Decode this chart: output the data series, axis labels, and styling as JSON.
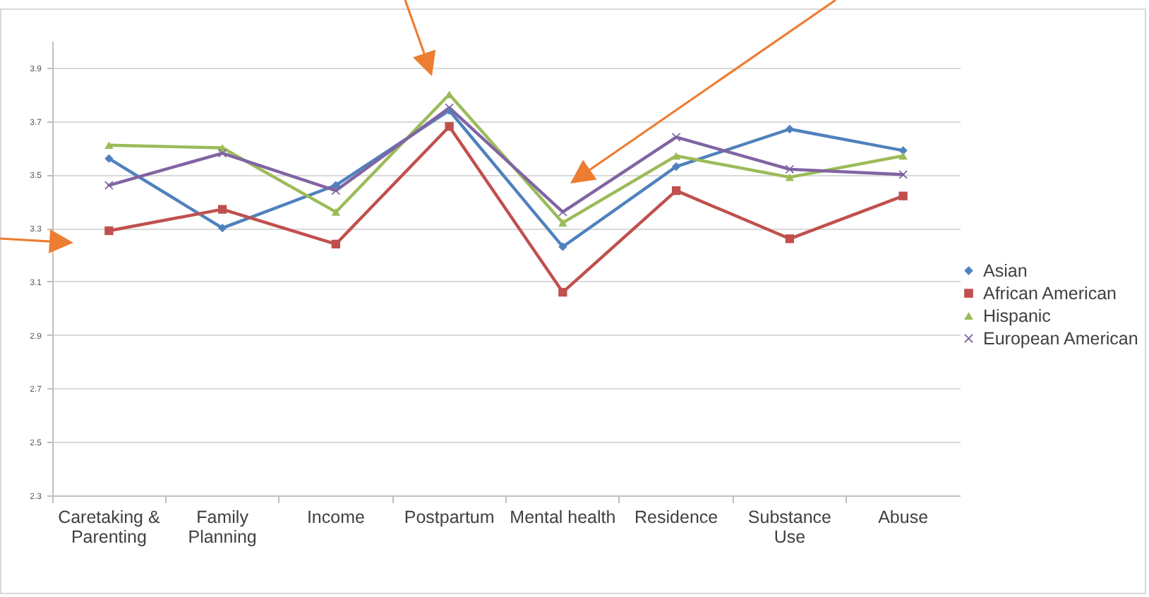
{
  "chart_data": {
    "type": "line",
    "categories": [
      "Caretaking & Parenting",
      "Family Planning",
      "Income",
      "Postpartum",
      "Mental health",
      "Residence",
      "Substance Use",
      "Abuse"
    ],
    "series": [
      {
        "name": "Asian",
        "color": "#4f81bd",
        "marker": "diamond",
        "values": [
          3.56,
          3.3,
          3.46,
          3.74,
          3.23,
          3.53,
          3.67,
          3.59
        ]
      },
      {
        "name": "African American",
        "color": "#c0504d",
        "marker": "square",
        "values": [
          3.29,
          3.37,
          3.24,
          3.68,
          3.06,
          3.44,
          3.26,
          3.42
        ]
      },
      {
        "name": "Hispanic",
        "color": "#9bbb59",
        "marker": "triangle",
        "values": [
          3.61,
          3.6,
          3.36,
          3.8,
          3.32,
          3.57,
          3.49,
          3.57
        ]
      },
      {
        "name": "European American",
        "color": "#8064a2",
        "marker": "cross",
        "values": [
          3.46,
          3.58,
          3.44,
          3.75,
          3.36,
          3.64,
          3.52,
          3.5
        ]
      }
    ],
    "ylim": [
      2.3,
      4.0
    ],
    "yticks": [
      2.3,
      2.5,
      2.7,
      2.9,
      3.1,
      3.3,
      3.5,
      3.7,
      3.9
    ],
    "grid": "y",
    "legend": "right",
    "line_style": "solid"
  }
}
